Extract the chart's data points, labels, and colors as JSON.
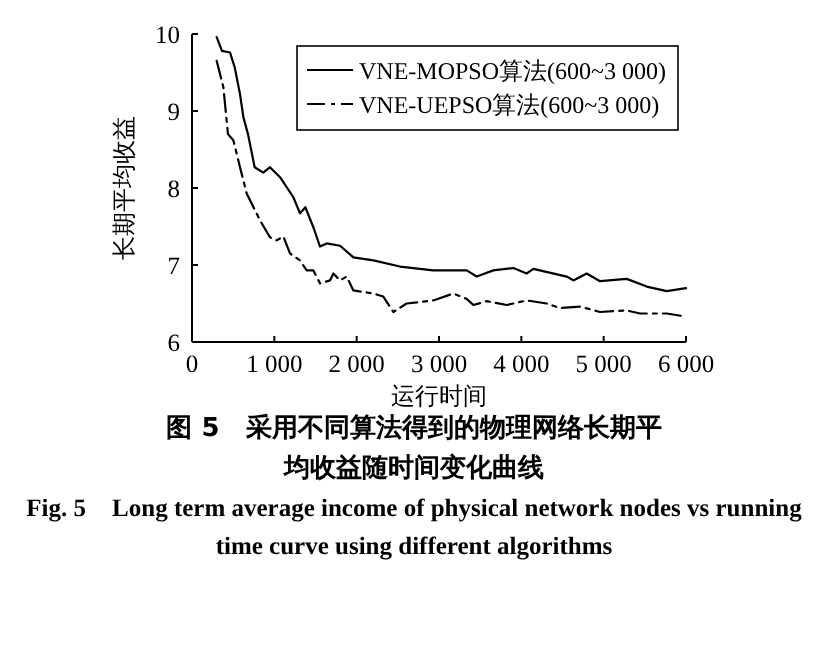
{
  "chart_data": {
    "type": "line",
    "title": "图 5　采用不同算法得到的物理网络长期平均收益随时间变化曲线",
    "subtitle": "Fig. 5　Long term average income of physical network nodes vs running time curve using different algorithms",
    "xlabel": "运行时间",
    "ylabel": "长期平均收益",
    "xlim": [
      0,
      6000
    ],
    "ylim": [
      6,
      10
    ],
    "xticks": [
      0,
      {
        "value": 1000,
        "label": "1 000"
      },
      {
        "value": 2000,
        "label": "2 000"
      },
      {
        "value": 3000,
        "label": "3 000"
      },
      {
        "value": 4000,
        "label": "4 000"
      },
      {
        "value": 5000,
        "label": "5 000"
      },
      {
        "value": 6000,
        "label": "6 000"
      }
    ],
    "yticks": [
      6,
      7,
      8,
      9,
      10
    ],
    "grid": false,
    "legend": "top right",
    "series": [
      {
        "name": "VNE-MOPSO算法(600~3 000)",
        "color": "#000000",
        "line_style": "solid",
        "x": [
          300,
          364,
          462,
          518,
          583,
          624,
          680,
          761,
          866,
          947,
          1069,
          1231,
          1312,
          1377,
          1474,
          1555,
          1636,
          1798,
          1960,
          2202,
          2526,
          2931,
          3336,
          3458,
          3660,
          3903,
          4065,
          4146,
          4551,
          4632,
          4794,
          4956,
          5280,
          5523,
          5766,
          6000
        ],
        "values": [
          9.96,
          9.78,
          9.76,
          9.57,
          9.22,
          8.92,
          8.7,
          8.27,
          8.2,
          8.27,
          8.14,
          7.88,
          7.67,
          7.75,
          7.49,
          7.24,
          7.28,
          7.25,
          7.1,
          7.06,
          6.98,
          6.93,
          6.93,
          6.85,
          6.93,
          6.96,
          6.89,
          6.95,
          6.85,
          6.8,
          6.89,
          6.79,
          6.82,
          6.72,
          6.66,
          6.7
        ]
      },
      {
        "name": "VNE-UEPSO算法(600~3 000)",
        "color": "#000000",
        "line_style": "dashed",
        "x": [
          300,
          381,
          437,
          502,
          583,
          664,
          826,
          947,
          1028,
          1110,
          1190,
          1312,
          1393,
          1474,
          1555,
          1676,
          1717,
          1798,
          1879,
          1960,
          2202,
          2324,
          2445,
          2607,
          2931,
          3174,
          3336,
          3417,
          3579,
          3822,
          4065,
          4308,
          4470,
          4713,
          4956,
          5280,
          5443,
          5766,
          6000
        ],
        "values": [
          9.65,
          9.31,
          8.7,
          8.62,
          8.27,
          7.93,
          7.58,
          7.36,
          7.32,
          7.37,
          7.15,
          7.06,
          6.93,
          6.93,
          6.76,
          6.8,
          6.89,
          6.8,
          6.85,
          6.67,
          6.63,
          6.59,
          6.39,
          6.5,
          6.54,
          6.63,
          6.56,
          6.48,
          6.53,
          6.48,
          6.54,
          6.5,
          6.44,
          6.46,
          6.39,
          6.41,
          6.37,
          6.37,
          6.33
        ]
      }
    ]
  }
}
